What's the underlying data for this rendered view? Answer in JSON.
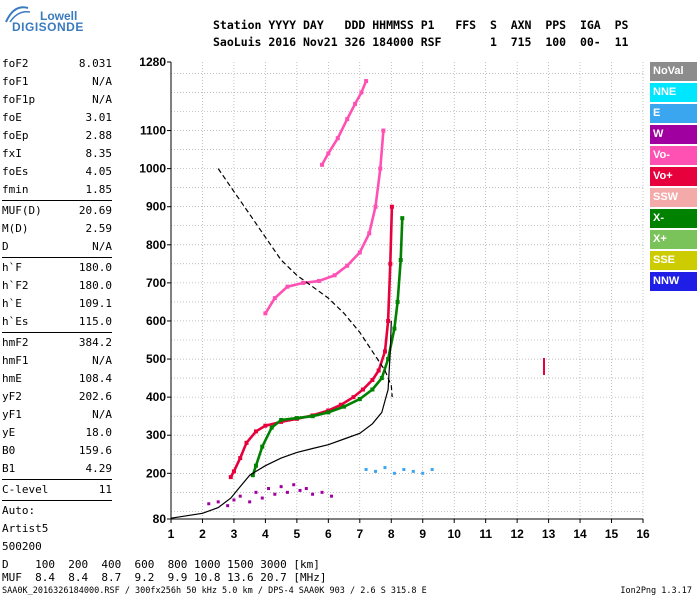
{
  "logo": {
    "line1": "Lowell",
    "line2": "DIGISONDE"
  },
  "header": {
    "row1": "Station YYYY DAY   DDD HHMMSS P1   FFS  S  AXN  PPS  IGA  PS",
    "row2": "SaoLuis 2016 Nov21 326 184000 RSF       1  715  100  00-  11"
  },
  "params": [
    {
      "group": 1,
      "label": "foF2",
      "value": "8.031"
    },
    {
      "group": 1,
      "label": "foF1",
      "value": "N/A"
    },
    {
      "group": 1,
      "label": "foF1p",
      "value": "N/A"
    },
    {
      "group": 1,
      "label": "foE",
      "value": "3.01"
    },
    {
      "group": 1,
      "label": "foEp",
      "value": "2.88"
    },
    {
      "group": 1,
      "label": "fxI",
      "value": "8.35"
    },
    {
      "group": 1,
      "label": "foEs",
      "value": "4.05"
    },
    {
      "group": 1,
      "label": "fmin",
      "value": "1.85"
    },
    {
      "group": 2,
      "label": "MUF(D)",
      "value": "20.69"
    },
    {
      "group": 2,
      "label": "M(D)",
      "value": "2.59"
    },
    {
      "group": 2,
      "label": "D",
      "value": "N/A"
    },
    {
      "group": 3,
      "label": "h`F",
      "value": "180.0"
    },
    {
      "group": 3,
      "label": "h`F2",
      "value": "180.0"
    },
    {
      "group": 3,
      "label": "h`E",
      "value": "109.1"
    },
    {
      "group": 3,
      "label": "h`Es",
      "value": "115.0"
    },
    {
      "group": 4,
      "label": "hmF2",
      "value": "384.2"
    },
    {
      "group": 4,
      "label": "hmF1",
      "value": "N/A"
    },
    {
      "group": 4,
      "label": "hmE",
      "value": "108.4"
    },
    {
      "group": 4,
      "label": "yF2",
      "value": "202.6"
    },
    {
      "group": 4,
      "label": "yF1",
      "value": "N/A"
    },
    {
      "group": 4,
      "label": "yE",
      "value": "18.0"
    },
    {
      "group": 4,
      "label": "B0",
      "value": "159.6"
    },
    {
      "group": 4,
      "label": "B1",
      "value": "4.29"
    },
    {
      "group": 5,
      "label": "C-level",
      "value": "11"
    },
    {
      "group": 6,
      "label": "Auto:",
      "value": ""
    },
    {
      "group": 6,
      "label": "Artist5",
      "value": ""
    },
    {
      "group": 6,
      "label": "500200",
      "value": ""
    }
  ],
  "legend": [
    {
      "label": "NoVal",
      "color": "#8c8c8c"
    },
    {
      "label": "NNE",
      "color": "#00e6ff"
    },
    {
      "label": "E",
      "color": "#3aa6f0"
    },
    {
      "label": "W",
      "color": "#a000a0"
    },
    {
      "label": "Vo-",
      "color": "#ff50b4"
    },
    {
      "label": "Vo+",
      "color": "#e6003c"
    },
    {
      "label": "SSW",
      "color": "#f5aaaa"
    },
    {
      "label": "X-",
      "color": "#008200"
    },
    {
      "label": "X+",
      "color": "#7ac35a"
    },
    {
      "label": "SSE",
      "color": "#cccc00"
    },
    {
      "label": "NNW",
      "color": "#1e1ee6"
    }
  ],
  "muf_table": {
    "row1": "D    100  200  400  600  800 1000 1500 3000 [km]",
    "row2": "MUF  8.4  8.4  8.7  9.2  9.9 10.8 13.6 20.7 [MHz]"
  },
  "footer": "SAA0K_2016326184000.RSF / 300fx256h 50 kHz 5.0 km / DPS-4 SAA0K 903 / 2.6 S 315.8 E",
  "version": "Ion2Png 1.3.17",
  "chart_data": {
    "type": "scatter",
    "title": "",
    "xlabel": "",
    "ylabel": "",
    "xlim": [
      1,
      16
    ],
    "ylim": [
      80,
      1280
    ],
    "xticks": [
      "1",
      "2",
      "3",
      "4",
      "5",
      "6",
      "7",
      "8",
      "9",
      "10",
      "11",
      "12",
      "13",
      "14",
      "15",
      "16"
    ],
    "yticks": [
      "80",
      "200",
      "300",
      "400",
      "500",
      "600",
      "700",
      "800",
      "900",
      "1000",
      "1100",
      "1280"
    ],
    "grid": true,
    "series": [
      {
        "trace": "O-trace F2 virtual height",
        "color": "#e6003c",
        "type": "line",
        "x": [
          2.9,
          3.0,
          3.2,
          3.4,
          3.7,
          4.0,
          4.5,
          5.0,
          5.5,
          6.0,
          6.4,
          6.8,
          7.1,
          7.4,
          7.6,
          7.8,
          7.9,
          7.97,
          8.02
        ],
        "y": [
          190,
          205,
          240,
          280,
          310,
          325,
          335,
          343,
          352,
          365,
          380,
          400,
          420,
          445,
          470,
          520,
          600,
          750,
          900
        ]
      },
      {
        "trace": "X-trace F2 virtual height",
        "color": "#008200",
        "type": "line",
        "x": [
          3.6,
          3.7,
          3.9,
          4.2,
          4.5,
          5.0,
          5.5,
          6.0,
          6.5,
          7.0,
          7.4,
          7.7,
          7.9,
          8.1,
          8.2,
          8.3,
          8.35
        ],
        "y": [
          195,
          220,
          270,
          320,
          340,
          345,
          350,
          360,
          375,
          395,
          420,
          450,
          500,
          580,
          650,
          760,
          870
        ]
      },
      {
        "trace": "O-trace F2 second hop",
        "color": "#ff50b4",
        "type": "line",
        "x": [
          4.0,
          4.3,
          4.7,
          5.2,
          5.7,
          6.2,
          6.6,
          7.0,
          7.3,
          7.5,
          7.65,
          7.75
        ],
        "y": [
          620,
          660,
          690,
          700,
          705,
          720,
          745,
          780,
          830,
          900,
          1000,
          1100
        ]
      },
      {
        "trace": "O-trace F2 third hop",
        "color": "#ff50b4",
        "type": "line",
        "x": [
          5.8,
          6.0,
          6.3,
          6.6,
          6.85,
          7.05,
          7.2
        ],
        "y": [
          1010,
          1040,
          1080,
          1130,
          1170,
          1200,
          1230
        ]
      },
      {
        "trace": "Profile N(h)",
        "color": "#000000",
        "type": "line",
        "x": [
          1.0,
          2.0,
          2.5,
          2.9,
          3.2,
          3.5,
          4.0,
          4.5,
          5.0,
          5.5,
          6.0,
          6.5,
          7.0,
          7.4,
          7.7,
          7.9,
          7.97,
          8.0
        ],
        "y": [
          82,
          95,
          110,
          135,
          165,
          195,
          220,
          240,
          255,
          265,
          275,
          290,
          305,
          330,
          360,
          420,
          520,
          600
        ]
      },
      {
        "trace": "Profile above peak",
        "color": "#000000",
        "type": "dashed",
        "x": [
          2.5,
          3.0,
          3.5,
          4.0,
          4.5,
          5.0,
          5.5,
          6.0,
          6.5,
          7.0,
          7.4,
          7.8,
          8.0,
          8.03
        ],
        "y": [
          1000,
          940,
          880,
          820,
          760,
          720,
          690,
          660,
          620,
          570,
          520,
          470,
          430,
          400
        ]
      },
      {
        "trace": "Es/E echoes",
        "color": "#a000a0",
        "type": "scatter",
        "x": [
          2.2,
          2.5,
          2.8,
          3.0,
          3.2,
          3.5,
          3.7,
          3.9,
          4.1,
          4.3,
          4.5,
          4.7,
          4.9,
          5.1,
          5.3,
          5.5,
          5.8,
          6.1
        ],
        "y": [
          120,
          125,
          115,
          130,
          140,
          125,
          150,
          135,
          160,
          145,
          165,
          150,
          170,
          155,
          160,
          145,
          150,
          140
        ]
      },
      {
        "trace": "Noise echoes",
        "color": "#3aa6f0",
        "type": "scatter",
        "x": [
          7.2,
          7.5,
          7.8,
          8.1,
          8.4,
          8.7,
          9.0,
          9.3
        ],
        "y": [
          210,
          205,
          215,
          200,
          210,
          205,
          200,
          210
        ]
      }
    ]
  }
}
